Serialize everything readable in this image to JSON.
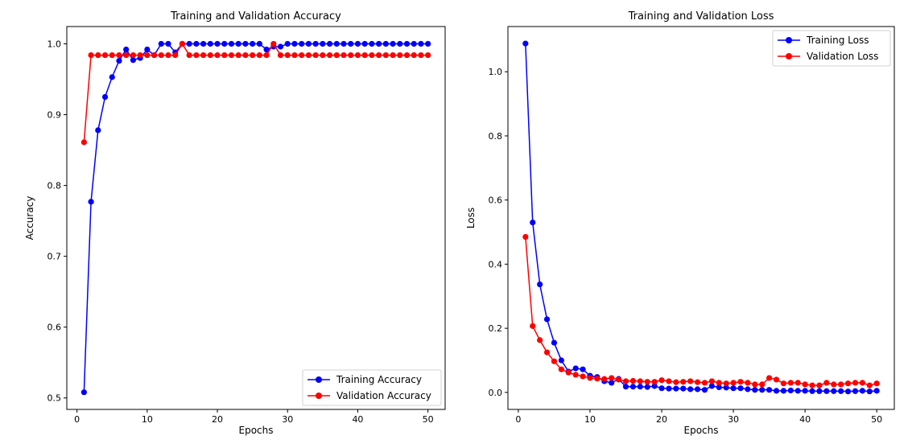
{
  "chart_data": [
    {
      "type": "line",
      "title": "Training and Validation Accuracy",
      "xlabel": "Epochs",
      "ylabel": "Accuracy",
      "xlim": [
        -1.45,
        52.45
      ],
      "ylim": [
        0.4838,
        1.0244
      ],
      "xticks": [
        0,
        10,
        20,
        30,
        40,
        50
      ],
      "yticks": [
        0.5,
        0.6,
        0.7,
        0.8,
        0.9,
        1.0
      ],
      "xtick_labels": [
        "0",
        "10",
        "20",
        "30",
        "40",
        "50"
      ],
      "ytick_labels": [
        "0.5",
        "0.6",
        "0.7",
        "0.8",
        "0.9",
        "1.0"
      ],
      "grid": false,
      "legend_position": "lower right",
      "series": [
        {
          "name": "Training Accuracy",
          "color": "#0000ff",
          "x": [
            1,
            2,
            3,
            4,
            5,
            6,
            7,
            8,
            9,
            10,
            11,
            12,
            13,
            14,
            15,
            16,
            17,
            18,
            19,
            20,
            21,
            22,
            23,
            24,
            25,
            26,
            27,
            28,
            29,
            30,
            31,
            32,
            33,
            34,
            35,
            36,
            37,
            38,
            39,
            40,
            41,
            42,
            43,
            44,
            45,
            46,
            47,
            48,
            49,
            50
          ],
          "y": [
            0.508,
            0.777,
            0.878,
            0.925,
            0.953,
            0.976,
            0.992,
            0.977,
            0.98,
            0.992,
            0.984,
            1.0,
            1.0,
            0.988,
            1.0,
            1.0,
            1.0,
            1.0,
            1.0,
            1.0,
            1.0,
            1.0,
            1.0,
            1.0,
            1.0,
            1.0,
            0.992,
            0.996,
            0.996,
            1.0,
            1.0,
            1.0,
            1.0,
            1.0,
            1.0,
            1.0,
            1.0,
            1.0,
            1.0,
            1.0,
            1.0,
            1.0,
            1.0,
            1.0,
            1.0,
            1.0,
            1.0,
            1.0,
            1.0,
            1.0
          ]
        },
        {
          "name": "Validation Accuracy",
          "color": "#ff0000",
          "x": [
            1,
            2,
            3,
            4,
            5,
            6,
            7,
            8,
            9,
            10,
            11,
            12,
            13,
            14,
            15,
            16,
            17,
            18,
            19,
            20,
            21,
            22,
            23,
            24,
            25,
            26,
            27,
            28,
            29,
            30,
            31,
            32,
            33,
            34,
            35,
            36,
            37,
            38,
            39,
            40,
            41,
            42,
            43,
            44,
            45,
            46,
            47,
            48,
            49,
            50
          ],
          "y": [
            0.861,
            0.984,
            0.984,
            0.984,
            0.984,
            0.984,
            0.984,
            0.984,
            0.984,
            0.984,
            0.984,
            0.984,
            0.984,
            0.984,
            1.0,
            0.984,
            0.984,
            0.984,
            0.984,
            0.984,
            0.984,
            0.984,
            0.984,
            0.984,
            0.984,
            0.984,
            0.984,
            1.0,
            0.984,
            0.984,
            0.984,
            0.984,
            0.984,
            0.984,
            0.984,
            0.984,
            0.984,
            0.984,
            0.984,
            0.984,
            0.984,
            0.984,
            0.984,
            0.984,
            0.984,
            0.984,
            0.984,
            0.984,
            0.984,
            0.984
          ]
        }
      ]
    },
    {
      "type": "line",
      "title": "Training and Validation Loss",
      "xlabel": "Epochs",
      "ylabel": "Loss",
      "xlim": [
        -1.45,
        52.45
      ],
      "ylim": [
        -0.053,
        1.141
      ],
      "xticks": [
        0,
        10,
        20,
        30,
        40,
        50
      ],
      "yticks": [
        0.0,
        0.2,
        0.4,
        0.6,
        0.8,
        1.0
      ],
      "xtick_labels": [
        "0",
        "10",
        "20",
        "30",
        "40",
        "50"
      ],
      "ytick_labels": [
        "0.0",
        "0.2",
        "0.4",
        "0.6",
        "0.8",
        "1.0"
      ],
      "grid": false,
      "legend_position": "upper right",
      "series": [
        {
          "name": "Training Loss",
          "color": "#0000ff",
          "x": [
            1,
            2,
            3,
            4,
            5,
            6,
            7,
            8,
            9,
            10,
            11,
            12,
            13,
            14,
            15,
            16,
            17,
            18,
            19,
            20,
            21,
            22,
            23,
            24,
            25,
            26,
            27,
            28,
            29,
            30,
            31,
            32,
            33,
            34,
            35,
            36,
            37,
            38,
            39,
            40,
            41,
            42,
            43,
            44,
            45,
            46,
            47,
            48,
            49,
            50
          ],
          "y": [
            1.088,
            0.53,
            0.337,
            0.228,
            0.155,
            0.1,
            0.065,
            0.075,
            0.072,
            0.052,
            0.048,
            0.035,
            0.03,
            0.042,
            0.018,
            0.018,
            0.018,
            0.017,
            0.02,
            0.013,
            0.012,
            0.012,
            0.012,
            0.01,
            0.01,
            0.008,
            0.02,
            0.016,
            0.015,
            0.013,
            0.013,
            0.01,
            0.008,
            0.008,
            0.008,
            0.005,
            0.005,
            0.006,
            0.005,
            0.005,
            0.004,
            0.004,
            0.004,
            0.004,
            0.004,
            0.003,
            0.004,
            0.005,
            0.003,
            0.005
          ]
        },
        {
          "name": "Validation Loss",
          "color": "#ff0000",
          "x": [
            1,
            2,
            3,
            4,
            5,
            6,
            7,
            8,
            9,
            10,
            11,
            12,
            13,
            14,
            15,
            16,
            17,
            18,
            19,
            20,
            21,
            22,
            23,
            24,
            25,
            26,
            27,
            28,
            29,
            30,
            31,
            32,
            33,
            34,
            35,
            36,
            37,
            38,
            39,
            40,
            41,
            42,
            43,
            44,
            45,
            46,
            47,
            48,
            49,
            50
          ],
          "y": [
            0.485,
            0.207,
            0.163,
            0.125,
            0.097,
            0.072,
            0.062,
            0.055,
            0.05,
            0.045,
            0.043,
            0.042,
            0.045,
            0.04,
            0.035,
            0.036,
            0.035,
            0.033,
            0.033,
            0.038,
            0.035,
            0.032,
            0.033,
            0.035,
            0.032,
            0.03,
            0.035,
            0.03,
            0.028,
            0.03,
            0.033,
            0.03,
            0.025,
            0.025,
            0.045,
            0.04,
            0.028,
            0.03,
            0.03,
            0.025,
            0.022,
            0.022,
            0.03,
            0.025,
            0.025,
            0.028,
            0.03,
            0.03,
            0.022,
            0.028
          ]
        }
      ]
    }
  ]
}
